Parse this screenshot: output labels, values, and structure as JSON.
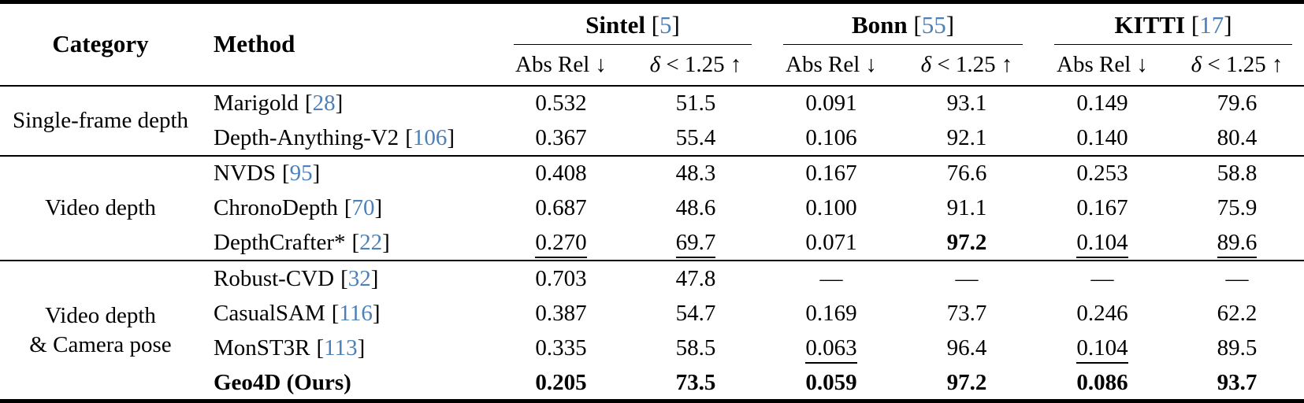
{
  "colors": {
    "citation_blue": "#4c80b6",
    "text": "#000000",
    "background": "#ffffff"
  },
  "punct": {
    "lbrack": "[",
    "rbrack": "]"
  },
  "header": {
    "category": "Category",
    "method": "Method",
    "groups": [
      {
        "name": "Sintel",
        "cite": "5"
      },
      {
        "name": "Bonn",
        "cite": "55"
      },
      {
        "name": "KITTI",
        "cite": "17"
      }
    ],
    "metrics": {
      "abs_rel": "Abs Rel ↓",
      "delta_sym": "δ",
      "delta_rest": " < 1.25 ↑"
    }
  },
  "sections": [
    {
      "category": "Single-frame depth",
      "rows": [
        {
          "method": "Marigold",
          "cite": "28",
          "bold": false,
          "cells": [
            [
              "0.532",
              "n"
            ],
            [
              "51.5",
              "n"
            ],
            [
              "0.091",
              "n"
            ],
            [
              "93.1",
              "n"
            ],
            [
              "0.149",
              "n"
            ],
            [
              "79.6",
              "n"
            ]
          ]
        },
        {
          "method": "Depth-Anything-V2",
          "cite": "106",
          "bold": false,
          "cells": [
            [
              "0.367",
              "n"
            ],
            [
              "55.4",
              "n"
            ],
            [
              "0.106",
              "n"
            ],
            [
              "92.1",
              "n"
            ],
            [
              "0.140",
              "n"
            ],
            [
              "80.4",
              "n"
            ]
          ]
        }
      ]
    },
    {
      "category": "Video depth",
      "rows": [
        {
          "method": "NVDS",
          "cite": "95",
          "bold": false,
          "cells": [
            [
              "0.408",
              "n"
            ],
            [
              "48.3",
              "n"
            ],
            [
              "0.167",
              "n"
            ],
            [
              "76.6",
              "n"
            ],
            [
              "0.253",
              "n"
            ],
            [
              "58.8",
              "n"
            ]
          ]
        },
        {
          "method": "ChronoDepth",
          "cite": "70",
          "bold": false,
          "cells": [
            [
              "0.687",
              "n"
            ],
            [
              "48.6",
              "n"
            ],
            [
              "0.100",
              "n"
            ],
            [
              "91.1",
              "n"
            ],
            [
              "0.167",
              "n"
            ],
            [
              "75.9",
              "n"
            ]
          ]
        },
        {
          "method": "DepthCrafter*",
          "cite": "22",
          "bold": false,
          "cells": [
            [
              "0.270",
              "u"
            ],
            [
              "69.7",
              "u"
            ],
            [
              "0.071",
              "n"
            ],
            [
              "97.2",
              "b"
            ],
            [
              "0.104",
              "u"
            ],
            [
              "89.6",
              "u"
            ]
          ]
        }
      ]
    },
    {
      "category": "Video depth\n& Camera pose",
      "rows": [
        {
          "method": "Robust-CVD",
          "cite": "32",
          "bold": false,
          "cells": [
            [
              "0.703",
              "n"
            ],
            [
              "47.8",
              "n"
            ],
            [
              "—",
              "n"
            ],
            [
              "—",
              "n"
            ],
            [
              "—",
              "n"
            ],
            [
              "—",
              "n"
            ]
          ]
        },
        {
          "method": "CasualSAM",
          "cite": "116",
          "bold": false,
          "cells": [
            [
              "0.387",
              "n"
            ],
            [
              "54.7",
              "n"
            ],
            [
              "0.169",
              "n"
            ],
            [
              "73.7",
              "n"
            ],
            [
              "0.246",
              "n"
            ],
            [
              "62.2",
              "n"
            ]
          ]
        },
        {
          "method": "MonST3R",
          "cite": "113",
          "bold": false,
          "cells": [
            [
              "0.335",
              "n"
            ],
            [
              "58.5",
              "n"
            ],
            [
              "0.063",
              "u"
            ],
            [
              "96.4",
              "n"
            ],
            [
              "0.104",
              "u"
            ],
            [
              "89.5",
              "n"
            ]
          ]
        },
        {
          "method": "Geo4D (Ours)",
          "cite": null,
          "bold": true,
          "cells": [
            [
              "0.205",
              "b"
            ],
            [
              "73.5",
              "b"
            ],
            [
              "0.059",
              "b"
            ],
            [
              "97.2",
              "b"
            ],
            [
              "0.086",
              "b"
            ],
            [
              "93.7",
              "b"
            ]
          ]
        }
      ]
    }
  ]
}
